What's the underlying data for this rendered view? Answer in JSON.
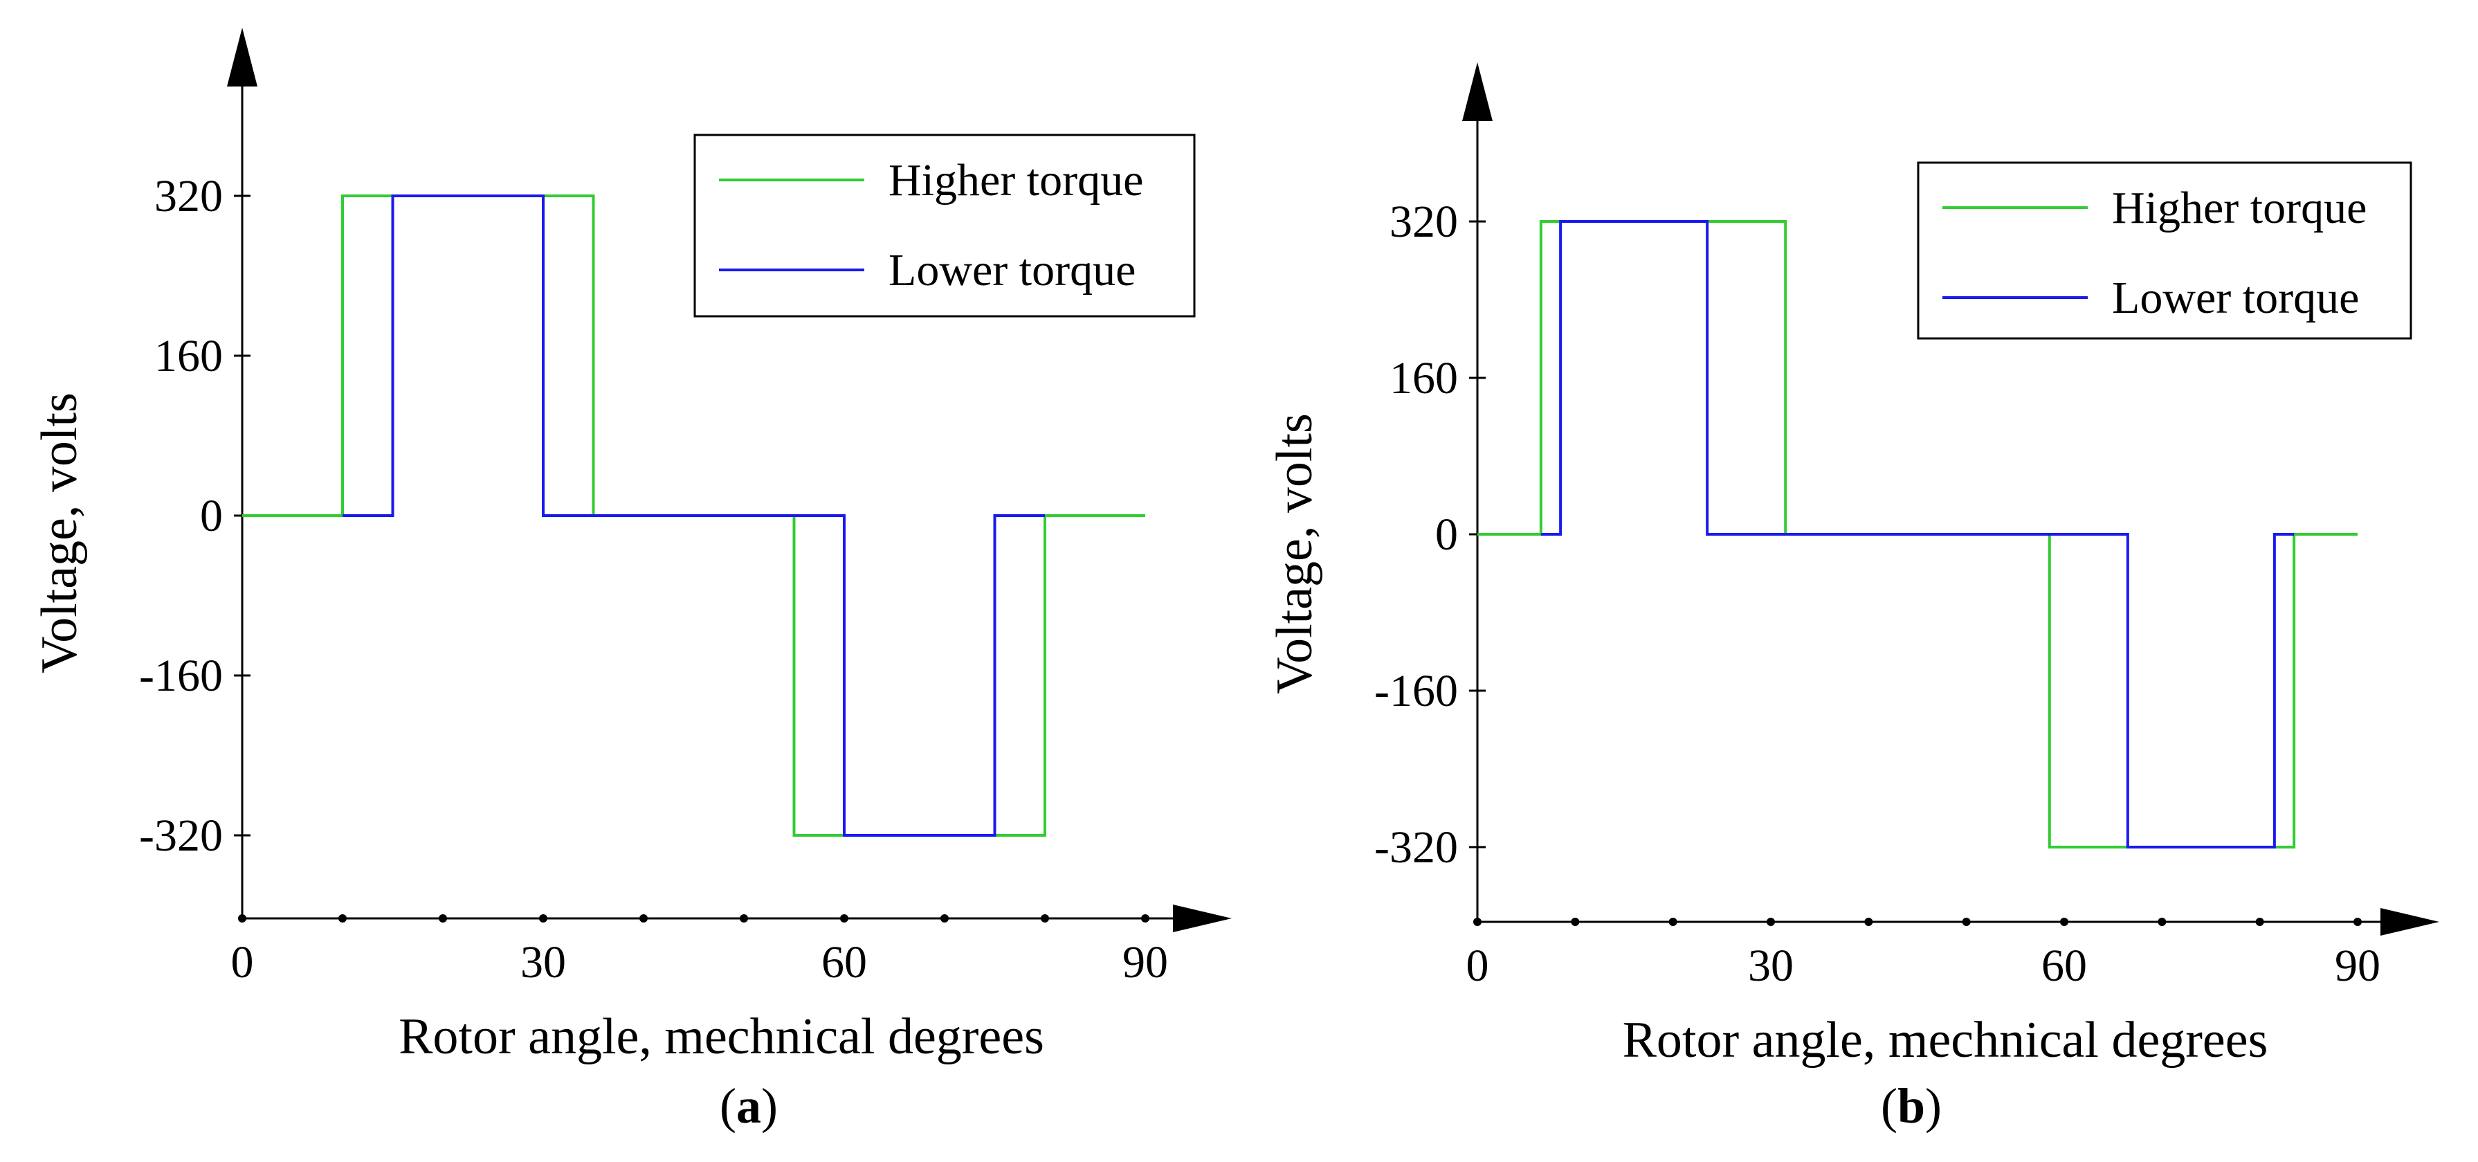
{
  "chart_data": [
    {
      "type": "line",
      "panel": "a",
      "panel_label": "(a)",
      "xlabel": "Rotor angle, mechnical degrees",
      "ylabel": "Voltage, volts",
      "xlim": [
        0,
        90
      ],
      "ylim": [
        -400,
        420
      ],
      "xticks": [
        0,
        30,
        60,
        90
      ],
      "yticks": [
        320,
        160,
        0,
        -160,
        -320
      ],
      "x_minor_ticks": [
        10,
        20,
        40,
        50,
        70,
        80
      ],
      "legend": "top-right",
      "series": [
        {
          "name": "Higher torque",
          "color": "#33cc33",
          "points": [
            [
              0,
              0
            ],
            [
              10,
              0
            ],
            [
              10,
              320
            ],
            [
              35,
              320
            ],
            [
              35,
              0
            ],
            [
              55,
              0
            ],
            [
              55,
              -320
            ],
            [
              80,
              -320
            ],
            [
              80,
              0
            ],
            [
              90,
              0
            ]
          ]
        },
        {
          "name": "Lower torque",
          "color": "#1a1aee",
          "points": [
            [
              10,
              0
            ],
            [
              15,
              0
            ],
            [
              15,
              320
            ],
            [
              30,
              320
            ],
            [
              30,
              0
            ],
            [
              35,
              0
            ],
            [
              55,
              0
            ],
            [
              60,
              0
            ],
            [
              60,
              -320
            ],
            [
              75,
              -320
            ],
            [
              75,
              0
            ],
            [
              80,
              0
            ]
          ]
        }
      ]
    },
    {
      "type": "line",
      "panel": "b",
      "panel_label": "(b)",
      "xlabel": "Rotor angle, mechnical degrees",
      "ylabel": "Voltage, volts",
      "xlim": [
        0,
        90
      ],
      "ylim": [
        -400,
        420
      ],
      "xticks": [
        0,
        30,
        60,
        90
      ],
      "yticks": [
        320,
        160,
        0,
        -160,
        -320
      ],
      "x_minor_ticks": [
        10,
        20,
        40,
        50,
        70,
        80
      ],
      "legend": "top-right",
      "series": [
        {
          "name": "Higher torque",
          "color": "#33cc33",
          "points": [
            [
              0,
              0
            ],
            [
              6.5,
              0
            ],
            [
              6.5,
              320
            ],
            [
              31.5,
              320
            ],
            [
              31.5,
              0
            ],
            [
              58.5,
              0
            ],
            [
              58.5,
              -320
            ],
            [
              83.5,
              -320
            ],
            [
              83.5,
              0
            ],
            [
              90,
              0
            ]
          ]
        },
        {
          "name": "Lower torque",
          "color": "#1a1aee",
          "points": [
            [
              6.5,
              0
            ],
            [
              8.5,
              0
            ],
            [
              8.5,
              320
            ],
            [
              23.5,
              320
            ],
            [
              23.5,
              0
            ],
            [
              31.5,
              0
            ],
            [
              58.5,
              0
            ],
            [
              66.5,
              0
            ],
            [
              66.5,
              -320
            ],
            [
              81.5,
              -320
            ],
            [
              81.5,
              0
            ],
            [
              83.5,
              0
            ]
          ]
        }
      ]
    }
  ]
}
